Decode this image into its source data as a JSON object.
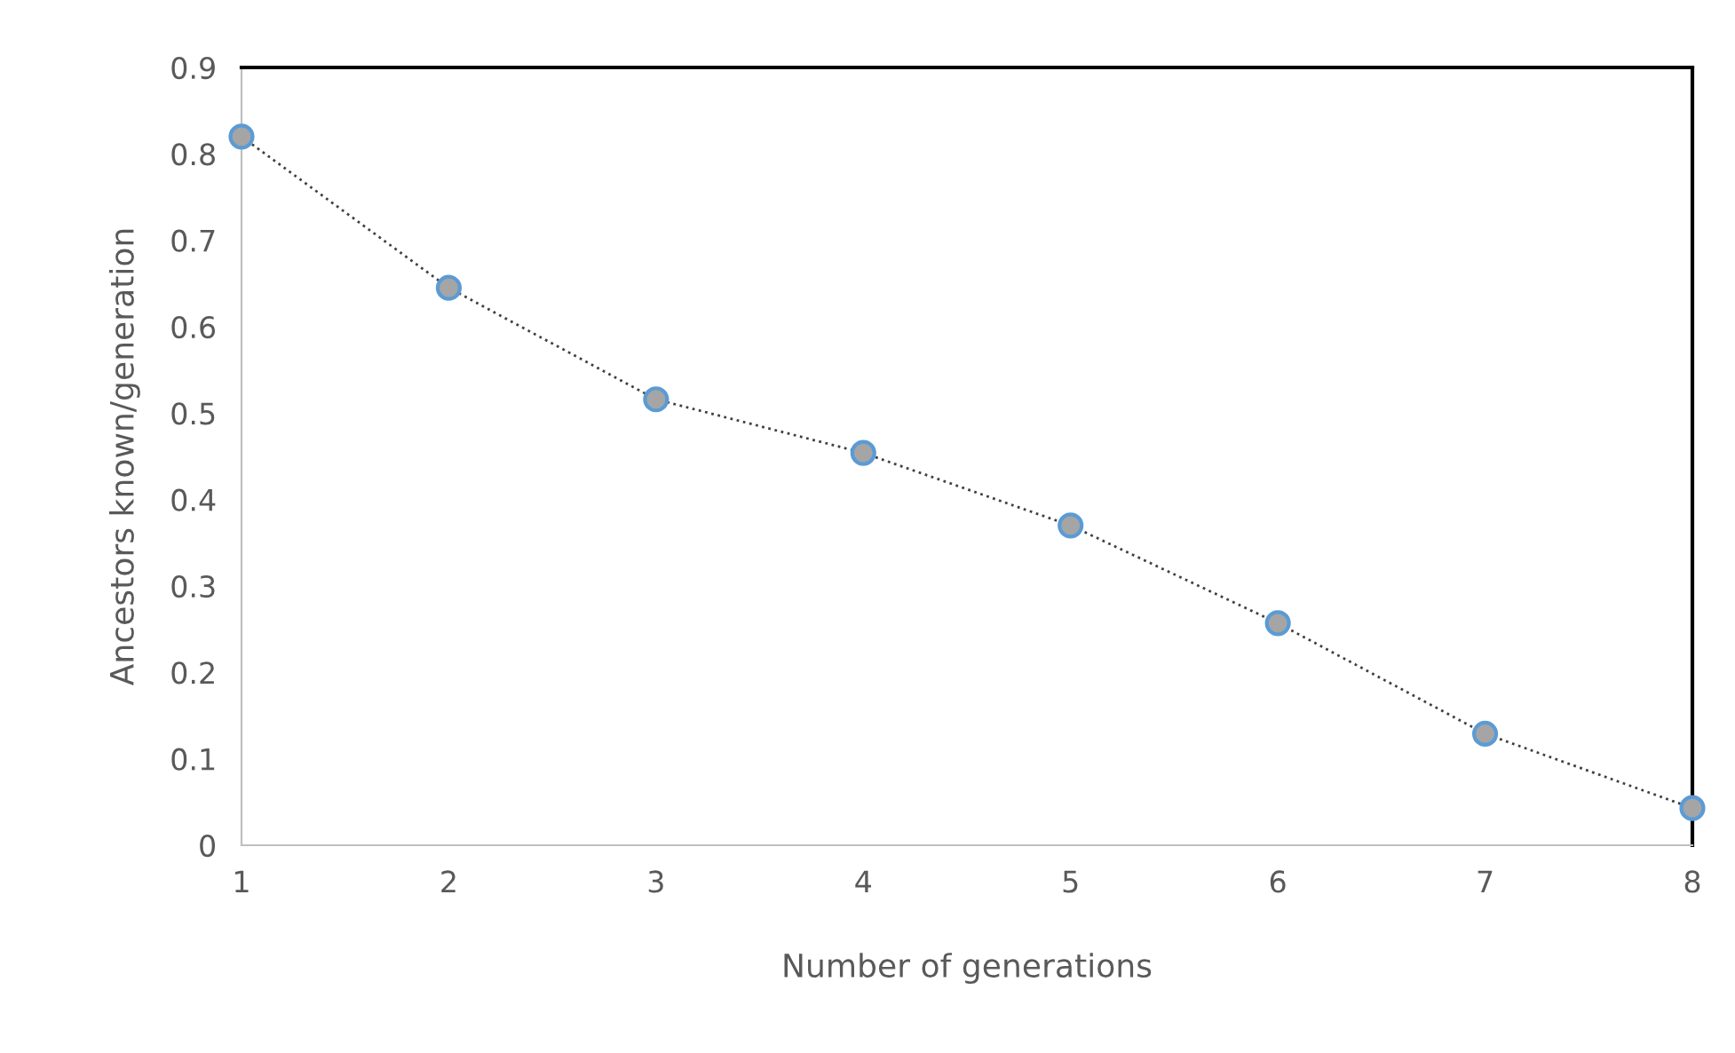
{
  "chart_data": {
    "type": "line",
    "xlabel": "Number of generations",
    "ylabel": "Ancestors known/generation",
    "x": [
      1,
      2,
      3,
      4,
      5,
      6,
      7,
      8
    ],
    "series": [
      {
        "color": "#a5a5a5",
        "values": [
          0.82,
          0.645,
          0.516,
          0.454,
          0.37,
          0.257,
          0.129,
          0.043
        ]
      }
    ],
    "xlim": [
      1,
      8
    ],
    "xticks": [
      1,
      2,
      3,
      4,
      5,
      6,
      7,
      8
    ],
    "ylim": [
      0,
      0.9
    ],
    "yticks": [
      0,
      0.1,
      0.2,
      0.3,
      0.4,
      0.5,
      0.6,
      0.7,
      0.8,
      0.9
    ],
    "grid": false,
    "legend": false,
    "marker": "circle",
    "line_style": "dotted"
  }
}
